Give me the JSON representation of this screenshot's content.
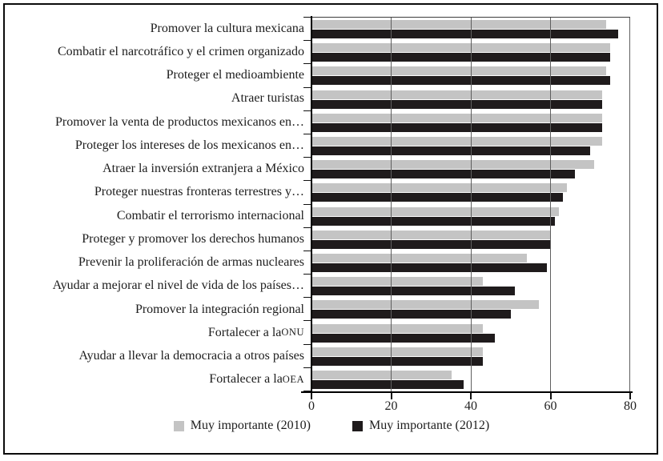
{
  "figure": {
    "background": "#ffffff",
    "border_color": "#0b0b0b",
    "gridline_color": "#5f5f5f"
  },
  "chart_data": {
    "type": "bar",
    "orientation": "horizontal",
    "title": "",
    "xlabel": "",
    "ylabel": "",
    "xlim": [
      0,
      80
    ],
    "xticks": [
      0,
      20,
      40,
      60,
      80
    ],
    "grid": "vertical gridlines at 20, 40, 60, 80",
    "legend_position": "bottom",
    "categories": [
      "Promover la cultura mexicana",
      "Combatir el narcotráfico y el crimen organizado",
      "Proteger el medioambiente",
      "Atraer turistas",
      "Promover la venta de productos mexicanos en…",
      "Proteger los intereses de los mexicanos en…",
      "Atraer la inversión extranjera a México",
      "Proteger nuestras fronteras terrestres y…",
      "Combatir el terrorismo internacional",
      "Proteger y promover los derechos humanos",
      "Prevenir la proliferación de armas nucleares",
      "Ayudar a mejorar el nivel de vida de los países…",
      "Promover la integración regional",
      "Fortalecer a la ONU",
      "Ayudar a llevar la democracia a otros países",
      "Fortalecer a la OEA"
    ],
    "series": [
      {
        "name": "Muy importante (2010)",
        "color": "#c4c4c4",
        "values": [
          74,
          75,
          74,
          73,
          73,
          73,
          71,
          64,
          62,
          60,
          54,
          43,
          57,
          43,
          43,
          35
        ]
      },
      {
        "name": "Muy importante (2012)",
        "color": "#1f1b1c",
        "values": [
          77,
          75,
          75,
          73,
          73,
          70,
          66,
          63,
          61,
          60,
          59,
          51,
          50,
          46,
          43,
          38
        ]
      }
    ]
  }
}
